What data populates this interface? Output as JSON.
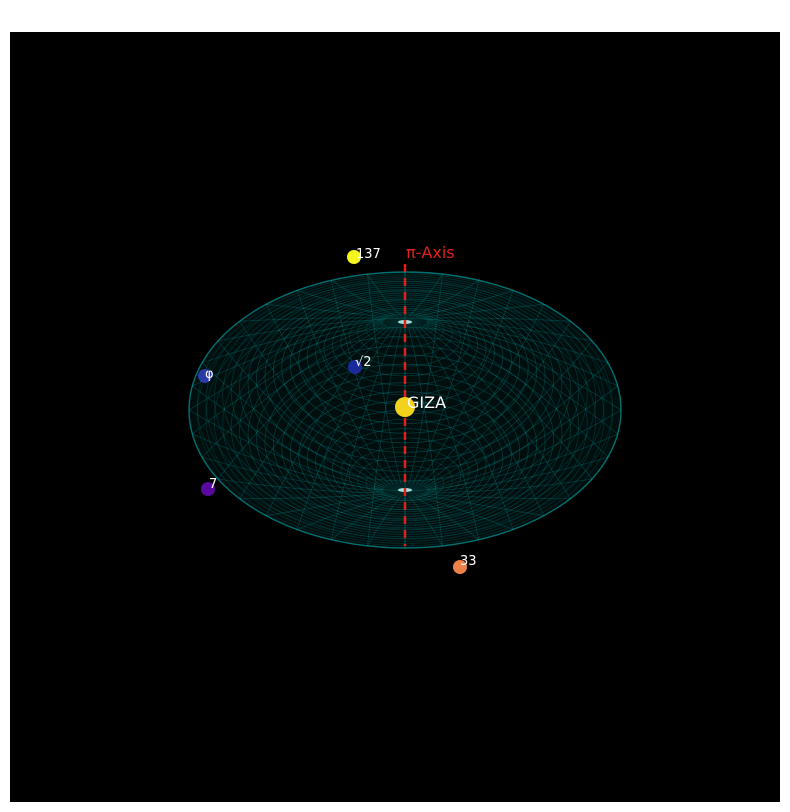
{
  "chart_data": {
    "type": "scatter",
    "projection": "3d",
    "background": "#000000",
    "surface": {
      "shape": "torus",
      "color": "#00c8c8",
      "style": "wireframe"
    },
    "axis_line": {
      "label": "π-Axis",
      "color": "#e0201c",
      "style": "dashed"
    },
    "points": [
      {
        "label": "GIZA",
        "color": "#f2d21b",
        "size": "large"
      },
      {
        "label": "137",
        "color": "#f5f51c"
      },
      {
        "label": "√2",
        "color": "#1a2a9c"
      },
      {
        "label": "φ",
        "color": "#2a3aa8"
      },
      {
        "label": "7",
        "color": "#5a0aa0"
      },
      {
        "label": "33",
        "color": "#f0804a"
      }
    ],
    "grid": false,
    "legend": "none"
  }
}
